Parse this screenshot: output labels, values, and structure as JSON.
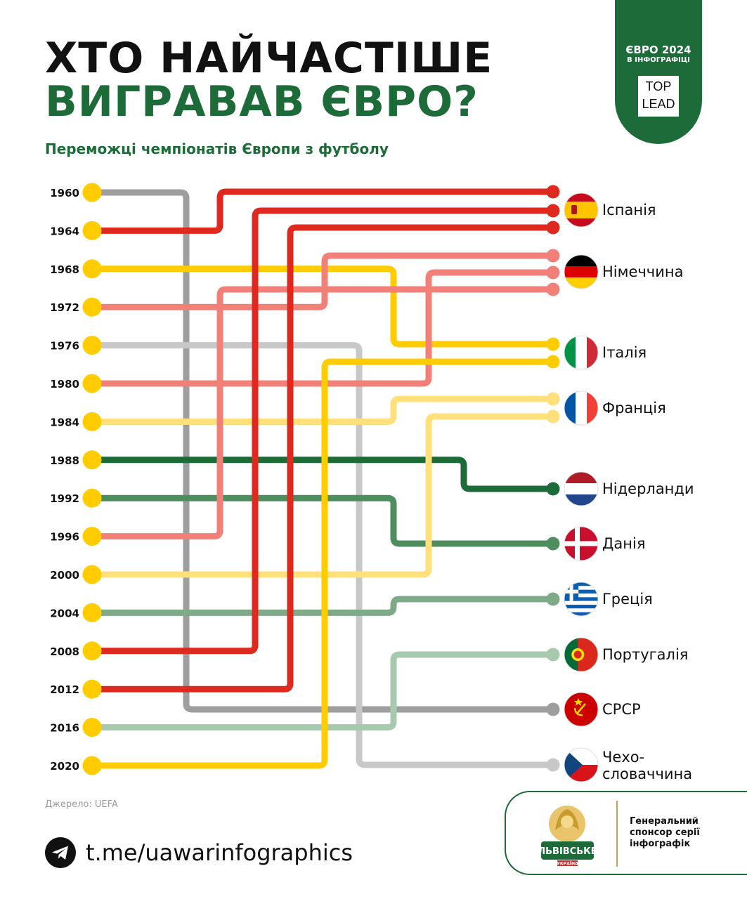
{
  "title": {
    "line1": "ХТО НАЙЧАСТІШЕ",
    "line2": "ВИГРАВАВ ЄВРО?"
  },
  "subtitle": "Переможці чемпіонатів Європи з футболу",
  "badge": {
    "line1": "ЄВРО 2024",
    "line2": "В ІНФОГРАФІЦІ",
    "logo_top": "TOP",
    "logo_bottom": "LEAD"
  },
  "source": "Джерело: UEFA",
  "telegram": {
    "link": "t.me/uawarinfographics",
    "icon": "telegram-icon"
  },
  "sponsor": {
    "brand": "ЛЬВІВСЬКЕ",
    "brand_sub": "УКРАЇНА",
    "text": "Генеральний спонсор серії інфографік",
    "icon": "lion-logo-icon"
  },
  "colors": {
    "green": "#1e6b3a",
    "yellow_dot": "#ffcc00"
  },
  "years": [
    "1960",
    "1964",
    "1968",
    "1972",
    "1976",
    "1980",
    "1984",
    "1988",
    "1992",
    "1996",
    "2000",
    "2004",
    "2008",
    "2012",
    "2016",
    "2020"
  ],
  "countries": [
    {
      "name": "Іспанія",
      "flag": "spain-flag-icon"
    },
    {
      "name": "Німеччина",
      "flag": "germany-flag-icon"
    },
    {
      "name": "Італія",
      "flag": "italy-flag-icon"
    },
    {
      "name": "Франція",
      "flag": "france-flag-icon"
    },
    {
      "name": "Нідерланди",
      "flag": "netherlands-flag-icon"
    },
    {
      "name": "Данія",
      "flag": "denmark-flag-icon"
    },
    {
      "name": "Греція",
      "flag": "greece-flag-icon"
    },
    {
      "name": "Португалія",
      "flag": "portugal-flag-icon"
    },
    {
      "name": "СРСР",
      "flag": "ussr-flag-icon"
    },
    {
      "name": "Чехо-\nсловаччина",
      "flag": "czechoslovakia-flag-icon"
    }
  ],
  "winners": [
    {
      "year": "1960",
      "country": "СРСР",
      "color": "#9e9e9e"
    },
    {
      "year": "1964",
      "country": "Іспанія",
      "color": "#e0291e"
    },
    {
      "year": "1968",
      "country": "Італія",
      "color": "#ffcc00"
    },
    {
      "year": "1972",
      "country": "Німеччина",
      "color": "#f08078"
    },
    {
      "year": "1976",
      "country": "Чехо-\nсловаччина",
      "color": "#c8c8c8"
    },
    {
      "year": "1980",
      "country": "Німеччина",
      "color": "#f08078"
    },
    {
      "year": "1984",
      "country": "Франція",
      "color": "#ffe07a"
    },
    {
      "year": "1988",
      "country": "Нідерланди",
      "color": "#1e6b3a"
    },
    {
      "year": "1992",
      "country": "Данія",
      "color": "#4e8e5e"
    },
    {
      "year": "1996",
      "country": "Німеччина",
      "color": "#f08078"
    },
    {
      "year": "2000",
      "country": "Франція",
      "color": "#ffe07a"
    },
    {
      "year": "2004",
      "country": "Греція",
      "color": "#7faa88"
    },
    {
      "year": "2008",
      "country": "Іспанія",
      "color": "#e0291e"
    },
    {
      "year": "2012",
      "country": "Іспанія",
      "color": "#e0291e"
    },
    {
      "year": "2016",
      "country": "Португалія",
      "color": "#a7c9ad"
    },
    {
      "year": "2020",
      "country": "Італія",
      "color": "#ffcc00"
    }
  ]
}
